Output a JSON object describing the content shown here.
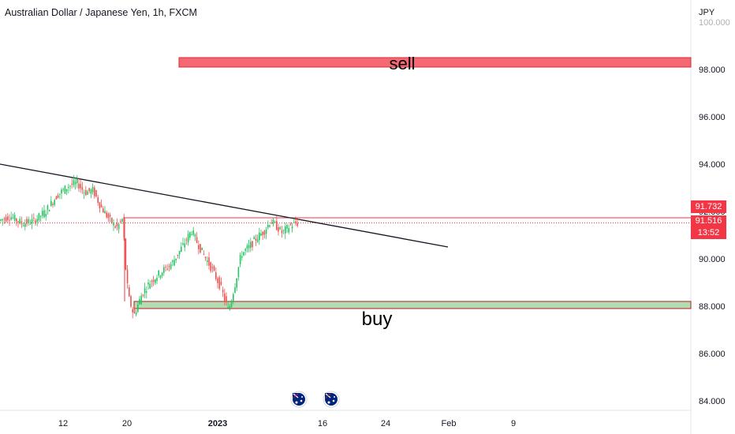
{
  "header": {
    "title": "Australian Dollar / Japanese Yen, 1h, FXCM"
  },
  "price_scale": {
    "currency": "JPY"
  },
  "price_tags": {
    "level": "91.732",
    "last": "91.516",
    "countdown": "13:52"
  },
  "colors": {
    "up": "#26a69a",
    "up_bright": "#22c55e",
    "down": "#ef5350",
    "sell_zone": "#f23645",
    "buy_zone": "#a5d6a7",
    "trendline": "#131722"
  },
  "events": [
    {
      "icon": "australia-flag-icon",
      "date": "2023-01-12"
    },
    {
      "icon": "australia-flag-icon",
      "date": "2023-01-17"
    }
  ],
  "chart_data": {
    "type": "candlestick",
    "title": "Australian Dollar / Japanese Yen, 1h, FXCM",
    "ylim": [
      83.8,
      100.2
    ],
    "y_ticks": [
      "84.000",
      "86.000",
      "88.000",
      "90.000",
      "92.000",
      "94.000",
      "96.000",
      "98.000",
      "100.000"
    ],
    "x_ticks": [
      "12",
      "20",
      "2023",
      "16",
      "24",
      "Feb",
      "9"
    ],
    "zones": [
      {
        "label": "sell",
        "from": 98.1,
        "to": 98.5
      },
      {
        "label": "buy",
        "from": 87.9,
        "to": 88.2
      }
    ],
    "horizontal_levels": [
      91.732,
      91.516
    ],
    "trendline": {
      "from": 94.0,
      "to": 90.5
    },
    "path_points": [
      [
        0,
        91.6
      ],
      [
        15,
        91.8
      ],
      [
        30,
        91.5
      ],
      [
        45,
        91.6
      ],
      [
        60,
        92.0
      ],
      [
        75,
        92.7
      ],
      [
        90,
        93.1
      ],
      [
        100,
        93.2
      ],
      [
        110,
        92.8
      ],
      [
        120,
        92.9
      ],
      [
        130,
        92.2
      ],
      [
        140,
        91.7
      ],
      [
        150,
        91.3
      ],
      [
        158,
        91.7
      ],
      [
        161,
        89.8
      ],
      [
        165,
        88.4
      ],
      [
        172,
        87.6
      ],
      [
        182,
        88.5
      ],
      [
        192,
        89.0
      ],
      [
        205,
        89.4
      ],
      [
        220,
        89.8
      ],
      [
        235,
        90.6
      ],
      [
        245,
        91.2
      ],
      [
        252,
        90.7
      ],
      [
        260,
        90.2
      ],
      [
        272,
        89.5
      ],
      [
        282,
        88.8
      ],
      [
        292,
        87.8
      ],
      [
        300,
        88.9
      ],
      [
        308,
        90.2
      ],
      [
        318,
        90.5
      ],
      [
        328,
        90.9
      ],
      [
        338,
        91.2
      ],
      [
        345,
        91.6
      ],
      [
        352,
        91.4
      ],
      [
        360,
        91.1
      ],
      [
        370,
        91.4
      ],
      [
        378,
        91.5
      ]
    ]
  }
}
